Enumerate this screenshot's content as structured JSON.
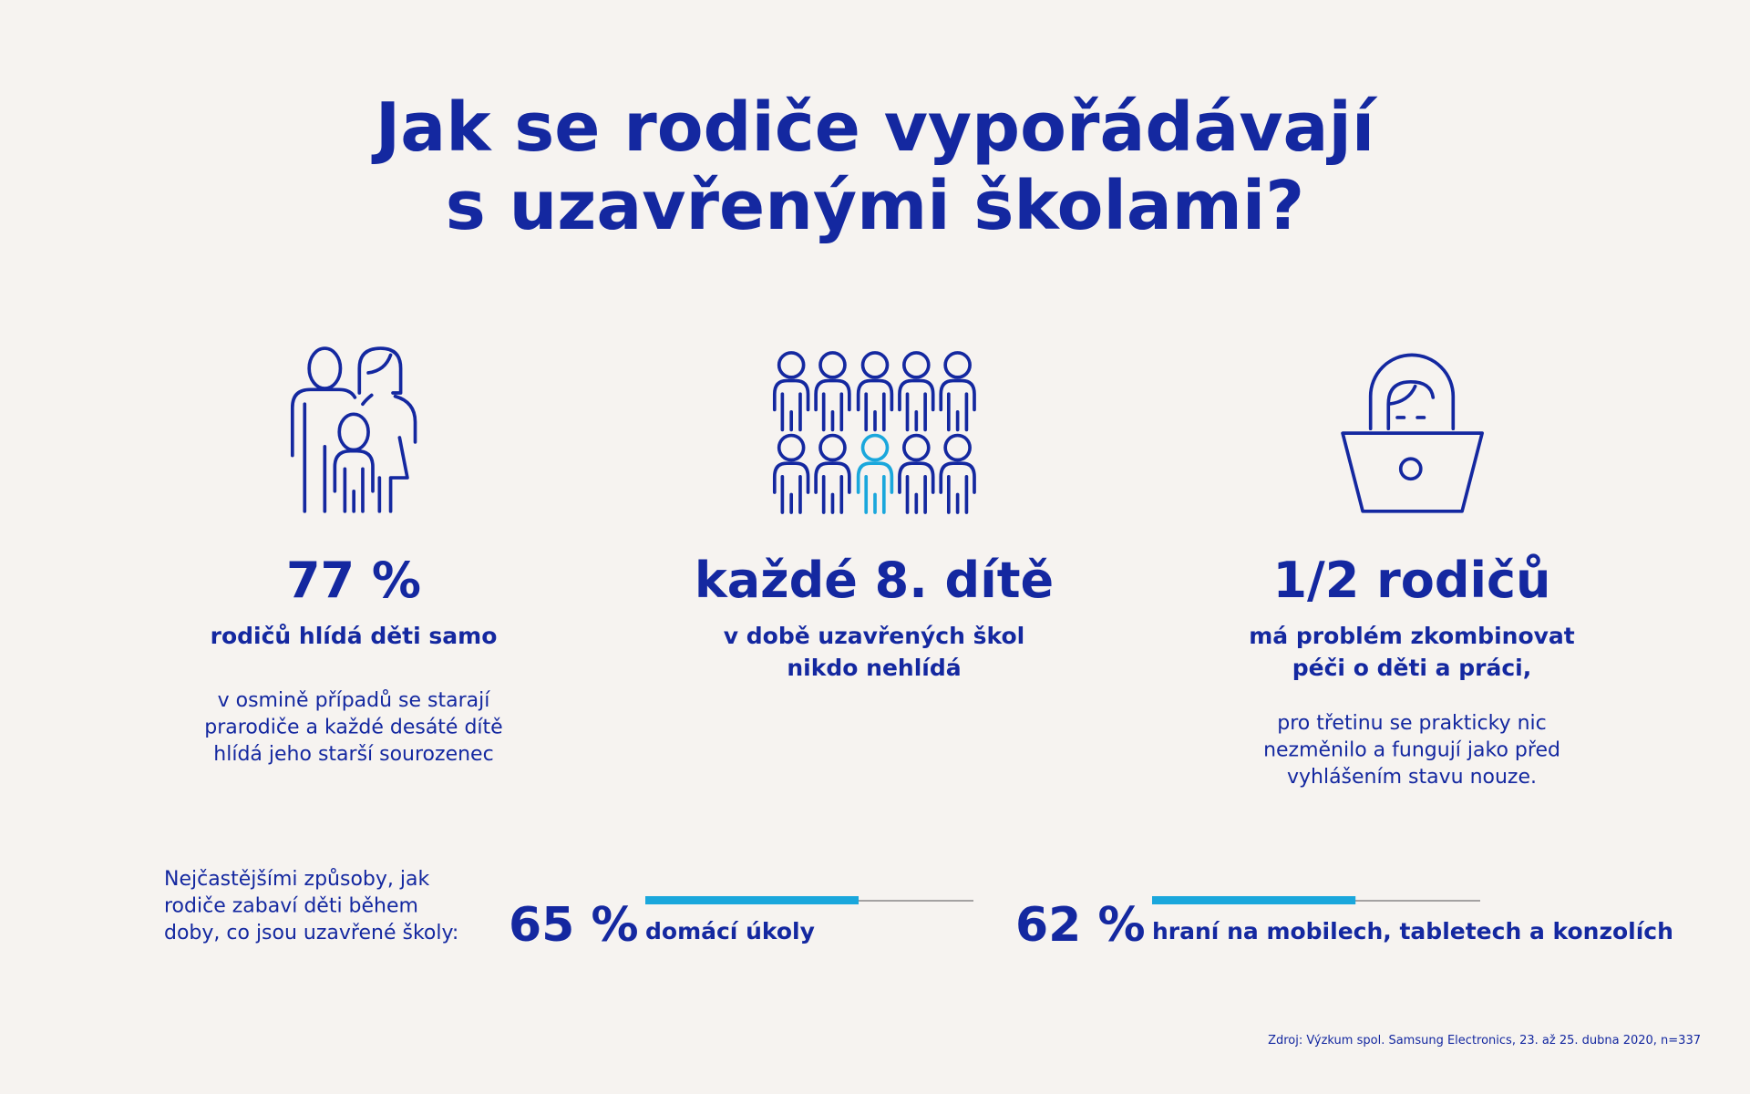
{
  "title": [
    "Jak se rodiče vypořádávají",
    "s uzavřenými školami?"
  ],
  "stats": [
    {
      "headline": "77 %",
      "subtitle": [
        "rodičů hlídá děti samo"
      ],
      "description": [
        "v osmině případů se starají",
        "prarodiče a každé desáté dítě",
        "hlídá jeho starší sourozenec"
      ]
    },
    {
      "headline": "každé 8. dítě",
      "subtitle": [
        "v době uzavřených škol",
        "nikdo nehlídá"
      ],
      "description": []
    },
    {
      "headline": "1/2 rodičů",
      "subtitle": [
        "má problém zkombinovat",
        "péči o děti a práci,"
      ],
      "description": [
        "pro třetinu se prakticky nic",
        "nezměnilo a fungují jako před",
        "vyhlášením stavu nouze."
      ]
    }
  ],
  "methods": {
    "intro": [
      "Nejčastějšími způsoby, jak",
      "rodiče zabaví děti během",
      "doby, co jsou uzavřené školy:"
    ],
    "items": [
      {
        "value": 65,
        "label": "65 %",
        "text": "domácí úkoly"
      },
      {
        "value": 62,
        "label": "62 %",
        "text": "hraní na mobilech, tabletech a konzolích"
      }
    ]
  },
  "source": "Zdroj: Výzkum spol. Samsung Electronics, 23. až 25. dubna 2020, n=337"
}
